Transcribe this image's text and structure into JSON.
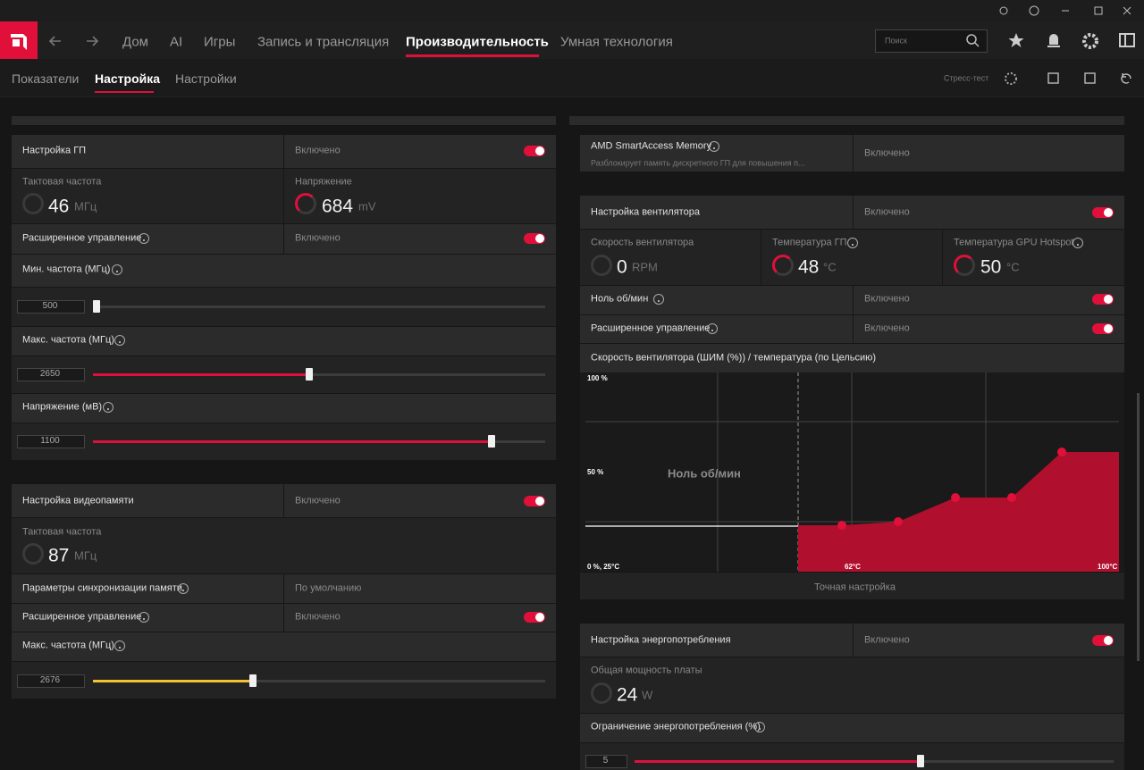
{
  "nav": {
    "items": [
      "Дом",
      "AI",
      "Игры",
      "Запись и трансляция",
      "Производительность",
      "Умная технология"
    ],
    "search": "Поиск"
  },
  "subnav": {
    "tabs": [
      "Показатели",
      "Настройка",
      "Настройки"
    ],
    "stress_test": "Стресс-тест"
  },
  "gpu": {
    "title": "Настройка ГП",
    "state": "Включено",
    "clock": {
      "label": "Тактовая частота",
      "value": 46,
      "unit": "МГц"
    },
    "voltage": {
      "label": "Напряжение",
      "value": 684,
      "unit": "mV"
    },
    "advanced": {
      "label": "Расширенное управление",
      "state": "Включено"
    },
    "min_freq": {
      "label": "Мин. частота (МГц)",
      "value": 500
    },
    "max_freq": {
      "label": "Макс. частота (МГц)",
      "value": 2650
    },
    "voltage_mv": {
      "label": "Напряжение (мВ)",
      "value": 1100
    }
  },
  "vram": {
    "title": "Настройка видеопамяти",
    "state": "Включено",
    "clock": {
      "label": "Тактовая частота",
      "value": 87,
      "unit": "МГц"
    },
    "timing": {
      "label": "Параметры синхронизации памяти",
      "value": "По умолчанию"
    },
    "advanced": {
      "label": "Расширенное управление",
      "state": "Включено"
    },
    "max_freq": {
      "label": "Макс. частота (МГц)",
      "value": 2676
    }
  },
  "sam": {
    "title": "AMD SmartAccess Memory",
    "description": "Разблокирует память дискретного ГП для повышения п...",
    "state": "Включено"
  },
  "fan": {
    "title": "Настройка вентилятора",
    "state": "Включено",
    "speed": {
      "label": "Скорость вентилятора",
      "value": 0,
      "unit": "RPM"
    },
    "gpu_temp": {
      "label": "Температура ГП",
      "value": 48,
      "unit": "°C"
    },
    "hotspot": {
      "label": "Температура GPU Hotspot",
      "value": 50,
      "unit": "°C"
    },
    "zero_rpm": {
      "label": "Ноль об/мин",
      "state": "Включено"
    },
    "advanced": {
      "label": "Расширенное управление",
      "state": "Включено"
    },
    "curve": {
      "title": "Скорость вентилятора (ШИМ (%)) / температура (по Цельсию)",
      "y_top": "100 %",
      "y_mid": "50 %",
      "origin": "0 %, 25°C",
      "x_mid": "62°C",
      "x_end": "100°C",
      "zero_rpm_zone": "Ноль об/мин",
      "fine_tune": "Точная настройка"
    }
  },
  "power": {
    "title": "Настройка энергопотребления",
    "state": "Включено",
    "board_power": {
      "label": "Общая мощность платы",
      "value": 24,
      "unit": "W"
    },
    "limit": {
      "label": "Ограничение энергопотребления (%)",
      "value": 5
    }
  }
}
